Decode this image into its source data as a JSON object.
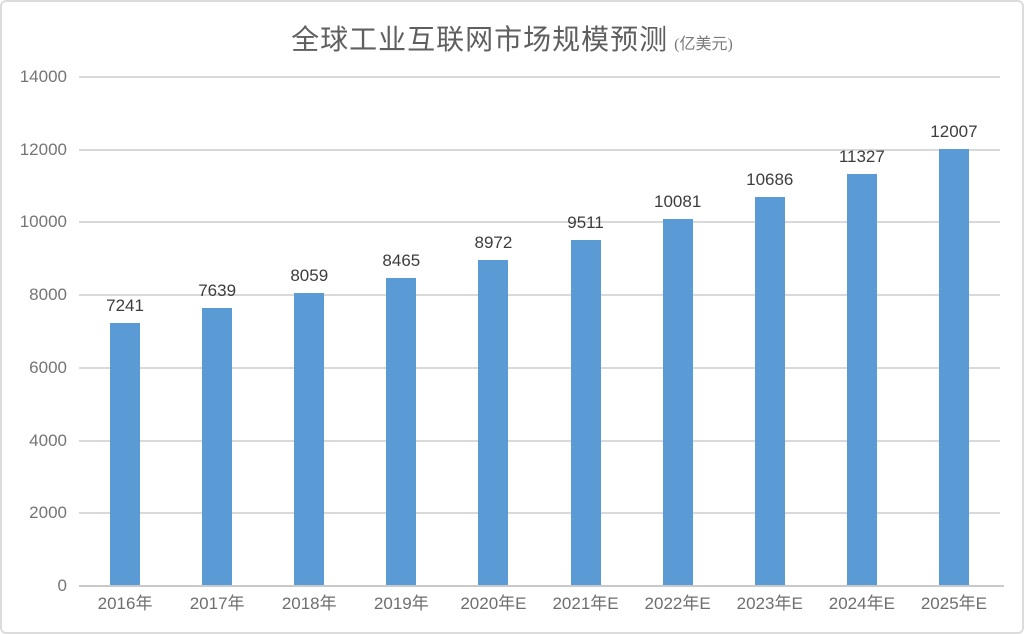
{
  "page": {
    "background": "#ffffff",
    "card_border_color": "#dcdcdc"
  },
  "chart_data": {
    "type": "bar",
    "title": "全球工业互联网市场规模预测",
    "subtitle": "(亿美元)",
    "categories": [
      "2016年",
      "2017年",
      "2018年",
      "2019年",
      "2020年E",
      "2021年E",
      "2022年E",
      "2023年E",
      "2024年E",
      "2025年E"
    ],
    "values": [
      7241,
      7639,
      8059,
      8465,
      8972,
      9511,
      10081,
      10686,
      11327,
      12007
    ],
    "xlabel": "",
    "ylabel": "",
    "ylim": [
      0,
      14000
    ],
    "yticks": [
      0,
      2000,
      4000,
      6000,
      8000,
      10000,
      12000,
      14000
    ],
    "grid": true,
    "legend_position": "none",
    "bar_color": "#5B9BD5",
    "gridline_color": "#d9d9d9",
    "axis_line_color": "#c9c9c9",
    "y_tick_label_color": "#757575",
    "x_tick_label_color": "#6e6e6e",
    "value_label_color": "#3d3d3d",
    "title_color": "#5f5f5f"
  }
}
